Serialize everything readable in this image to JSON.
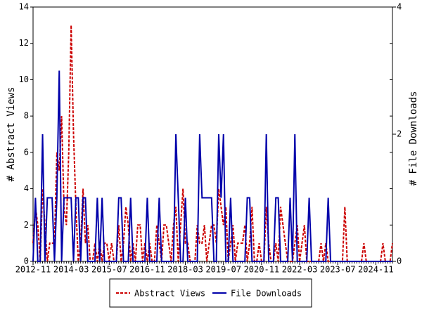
{
  "chart_data": {
    "type": "line",
    "ylabel": "# Abstract Views",
    "y2label": "# File Downloads",
    "categories": [
      "2012-11",
      null,
      null,
      null,
      null,
      null,
      null,
      null,
      null,
      null,
      null,
      null,
      null,
      null,
      null,
      null,
      "2014-03",
      null,
      null,
      null,
      null,
      null,
      null,
      null,
      null,
      null,
      null,
      null,
      null,
      null,
      null,
      null,
      "2015-07",
      null,
      null,
      null,
      null,
      null,
      null,
      null,
      null,
      null,
      null,
      null,
      null,
      null,
      null,
      null,
      "2016-11",
      null,
      null,
      null,
      null,
      null,
      null,
      null,
      null,
      null,
      null,
      null,
      null,
      null,
      null,
      null,
      "2018-03",
      null,
      null,
      null,
      null,
      null,
      null,
      null,
      null,
      null,
      null,
      null,
      null,
      null,
      null,
      null,
      "2019-07",
      null,
      null,
      null,
      null,
      null,
      null,
      null,
      null,
      null,
      null,
      null,
      null,
      null,
      null,
      null,
      "2020-11",
      null,
      null,
      null,
      null,
      null,
      null,
      null,
      null,
      null,
      null,
      null,
      null,
      null,
      null,
      null,
      "2022-03",
      null,
      null,
      null,
      null,
      null,
      null,
      null,
      null,
      null,
      null,
      null,
      null,
      null,
      null,
      null,
      "2023-07",
      null,
      null,
      null,
      null,
      null,
      null,
      null,
      null,
      null,
      null,
      null,
      null,
      null,
      null,
      null,
      "2024-11",
      null,
      null,
      null,
      null,
      null,
      null,
      null
    ],
    "series": [
      {
        "name": "Abstract Views",
        "color": "#cc0000",
        "dash": true,
        "values": [
          1,
          3,
          2,
          0,
          4,
          2,
          0,
          1,
          1,
          1,
          6,
          5,
          8,
          3,
          2,
          6,
          13,
          7,
          3,
          0,
          1,
          4,
          1,
          2,
          0,
          0,
          1,
          0,
          1,
          0,
          1,
          1,
          0,
          1,
          0,
          0,
          2,
          0,
          1,
          3,
          2,
          0,
          1,
          0,
          2,
          2,
          0,
          1,
          0,
          1,
          0,
          0,
          2,
          1,
          0,
          2,
          2,
          1,
          0,
          2,
          3,
          0,
          2,
          4,
          1,
          1,
          0,
          0,
          0,
          2,
          1,
          1,
          2,
          0,
          1,
          2,
          2,
          1,
          4,
          3,
          2,
          3,
          0,
          1,
          2,
          0,
          1,
          1,
          1,
          2,
          0,
          1,
          3,
          0,
          0,
          1,
          0,
          0,
          3,
          1,
          0,
          0,
          1,
          0,
          3,
          2,
          1,
          0,
          0,
          0,
          1,
          2,
          0,
          1,
          2,
          0,
          0,
          0,
          0,
          0,
          0,
          1,
          0,
          1,
          0,
          0,
          0,
          0,
          0,
          0,
          0,
          3,
          0,
          0,
          0,
          0,
          0,
          0,
          0,
          1,
          0,
          0,
          0,
          0,
          0,
          0,
          0,
          1,
          0,
          0,
          0,
          1
        ]
      },
      {
        "name": "File Downloads",
        "color": "#0000aa",
        "axis": "y2",
        "values": [
          0,
          1,
          0,
          0,
          2,
          0,
          1,
          1,
          1,
          0,
          1,
          3,
          0,
          1,
          1,
          1,
          1,
          0,
          1,
          1,
          0,
          1,
          1,
          0,
          0,
          0,
          0,
          1,
          0,
          1,
          0,
          0,
          0,
          0,
          0,
          0,
          1,
          1,
          0,
          0,
          0,
          1,
          0,
          0,
          0,
          0,
          0,
          0,
          1,
          0,
          0,
          0,
          0,
          1,
          0,
          0,
          0,
          0,
          0,
          0,
          2,
          1,
          0,
          0,
          1,
          0,
          0,
          0,
          0,
          0,
          2,
          1,
          1,
          1,
          1,
          1,
          0,
          0,
          2,
          1,
          2,
          0,
          0,
          1,
          0,
          0,
          0,
          0,
          0,
          0,
          1,
          1,
          0,
          0,
          0,
          0,
          0,
          0,
          2,
          0,
          0,
          0,
          1,
          1,
          0,
          0,
          0,
          0,
          1,
          0,
          2,
          0,
          0,
          0,
          0,
          0,
          1,
          0,
          0,
          0,
          0,
          0,
          0,
          0,
          1,
          0,
          0,
          0,
          0,
          0,
          0,
          0,
          0,
          0,
          0,
          0,
          0,
          0,
          0,
          0,
          0,
          0,
          0,
          0,
          0,
          0,
          0,
          0,
          0,
          0,
          0,
          0
        ]
      }
    ],
    "ylim": [
      0,
      14
    ],
    "yticks": [
      0,
      2,
      4,
      6,
      8,
      10,
      12,
      14
    ],
    "y2lim": [
      0,
      4
    ],
    "y2ticks": [
      0,
      2,
      4
    ]
  }
}
